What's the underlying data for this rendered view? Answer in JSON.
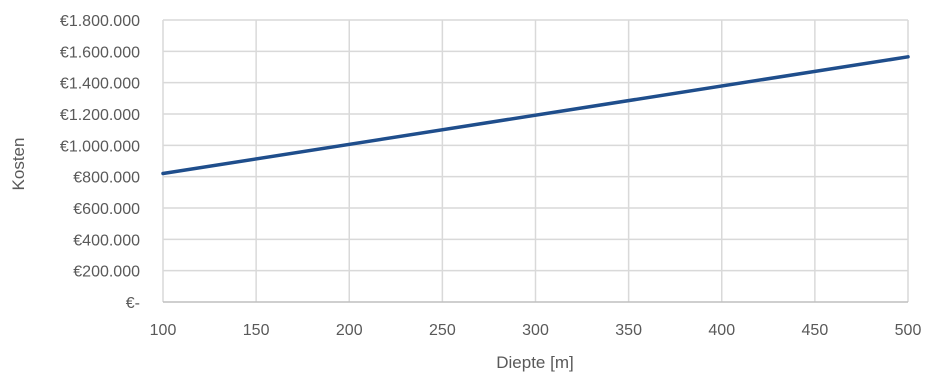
{
  "chart_data": {
    "type": "line",
    "title": "",
    "xlabel": "Diepte [m]",
    "ylabel": "Kosten",
    "x_ticks": [
      "100",
      "150",
      "200",
      "250",
      "300",
      "350",
      "400",
      "450",
      "500"
    ],
    "y_ticks": [
      "€-",
      "€200.000",
      "€400.000",
      "€600.000",
      "€800.000",
      "€1.000.000",
      "€1.200.000",
      "€1.400.000",
      "€1.600.000",
      "€1.800.000"
    ],
    "xlim": [
      100,
      500
    ],
    "ylim": [
      0,
      1800000
    ],
    "grid": true,
    "legend": "none",
    "series": [
      {
        "x": [
          100,
          500
        ],
        "values": [
          820000,
          1565000
        ],
        "color": "#1f4e8c"
      }
    ]
  }
}
